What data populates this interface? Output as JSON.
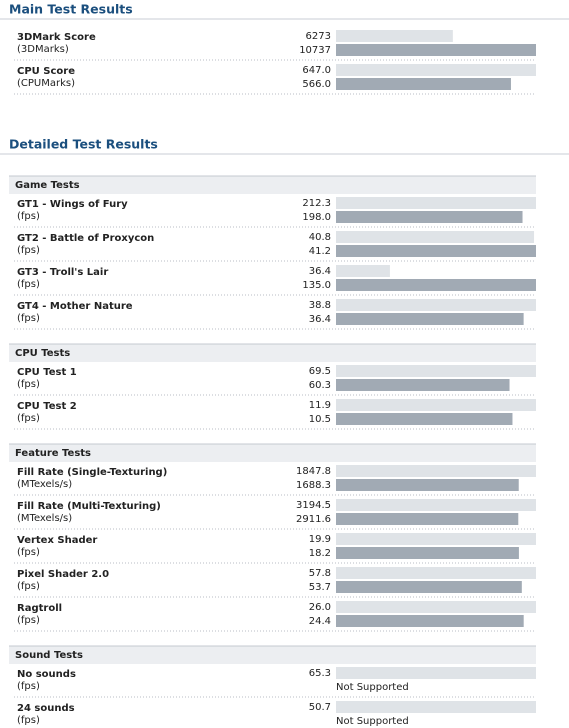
{
  "main": {
    "title": "Main Test Results",
    "rows": [
      {
        "name": "3DMark Score",
        "unit": "(3DMarks)",
        "values": [
          6273,
          10737
        ],
        "value_labels": [
          "6273",
          "10737"
        ]
      },
      {
        "name": "CPU Score",
        "unit": "(CPUMarks)",
        "values": [
          647.0,
          566.0
        ],
        "value_labels": [
          "647.0",
          "566.0"
        ]
      }
    ]
  },
  "detailed": {
    "title": "Detailed Test Results",
    "sections": [
      {
        "title": "Game Tests",
        "rows": [
          {
            "name": "GT1 - Wings of Fury",
            "unit": "(fps)",
            "values": [
              212.3,
              198.0
            ],
            "value_labels": [
              "212.3",
              "198.0"
            ]
          },
          {
            "name": "GT2 - Battle of Proxycon",
            "unit": "(fps)",
            "values": [
              40.8,
              41.2
            ],
            "value_labels": [
              "40.8",
              "41.2"
            ]
          },
          {
            "name": "GT3 - Troll's Lair",
            "unit": "(fps)",
            "values": [
              36.4,
              135.0
            ],
            "value_labels": [
              "36.4",
              "135.0"
            ]
          },
          {
            "name": "GT4 - Mother Nature",
            "unit": "(fps)",
            "values": [
              38.8,
              36.4
            ],
            "value_labels": [
              "38.8",
              "36.4"
            ]
          }
        ]
      },
      {
        "title": "CPU Tests",
        "rows": [
          {
            "name": "CPU Test 1",
            "unit": "(fps)",
            "values": [
              69.5,
              60.3
            ],
            "value_labels": [
              "69.5",
              "60.3"
            ]
          },
          {
            "name": "CPU Test 2",
            "unit": "(fps)",
            "values": [
              11.9,
              10.5
            ],
            "value_labels": [
              "11.9",
              "10.5"
            ]
          }
        ]
      },
      {
        "title": "Feature Tests",
        "rows": [
          {
            "name": "Fill Rate (Single-Texturing)",
            "unit": "(MTexels/s)",
            "values": [
              1847.8,
              1688.3
            ],
            "value_labels": [
              "1847.8",
              "1688.3"
            ]
          },
          {
            "name": "Fill Rate (Multi-Texturing)",
            "unit": "(MTexels/s)",
            "values": [
              3194.5,
              2911.6
            ],
            "value_labels": [
              "3194.5",
              "2911.6"
            ]
          },
          {
            "name": "Vertex Shader",
            "unit": "(fps)",
            "values": [
              19.9,
              18.2
            ],
            "value_labels": [
              "19.9",
              "18.2"
            ]
          },
          {
            "name": "Pixel Shader 2.0",
            "unit": "(fps)",
            "values": [
              57.8,
              53.7
            ],
            "value_labels": [
              "57.8",
              "53.7"
            ]
          },
          {
            "name": "Ragtroll",
            "unit": "(fps)",
            "values": [
              26.0,
              24.4
            ],
            "value_labels": [
              "26.0",
              "24.4"
            ]
          }
        ]
      },
      {
        "title": "Sound Tests",
        "rows": [
          {
            "name": "No sounds",
            "unit": "(fps)",
            "values": [
              65.3,
              null
            ],
            "value_labels": [
              "65.3",
              "Not Supported"
            ]
          },
          {
            "name": "24 sounds",
            "unit": "(fps)",
            "values": [
              50.7,
              null
            ],
            "value_labels": [
              "50.7",
              "Not Supported"
            ]
          }
        ]
      }
    ]
  }
}
